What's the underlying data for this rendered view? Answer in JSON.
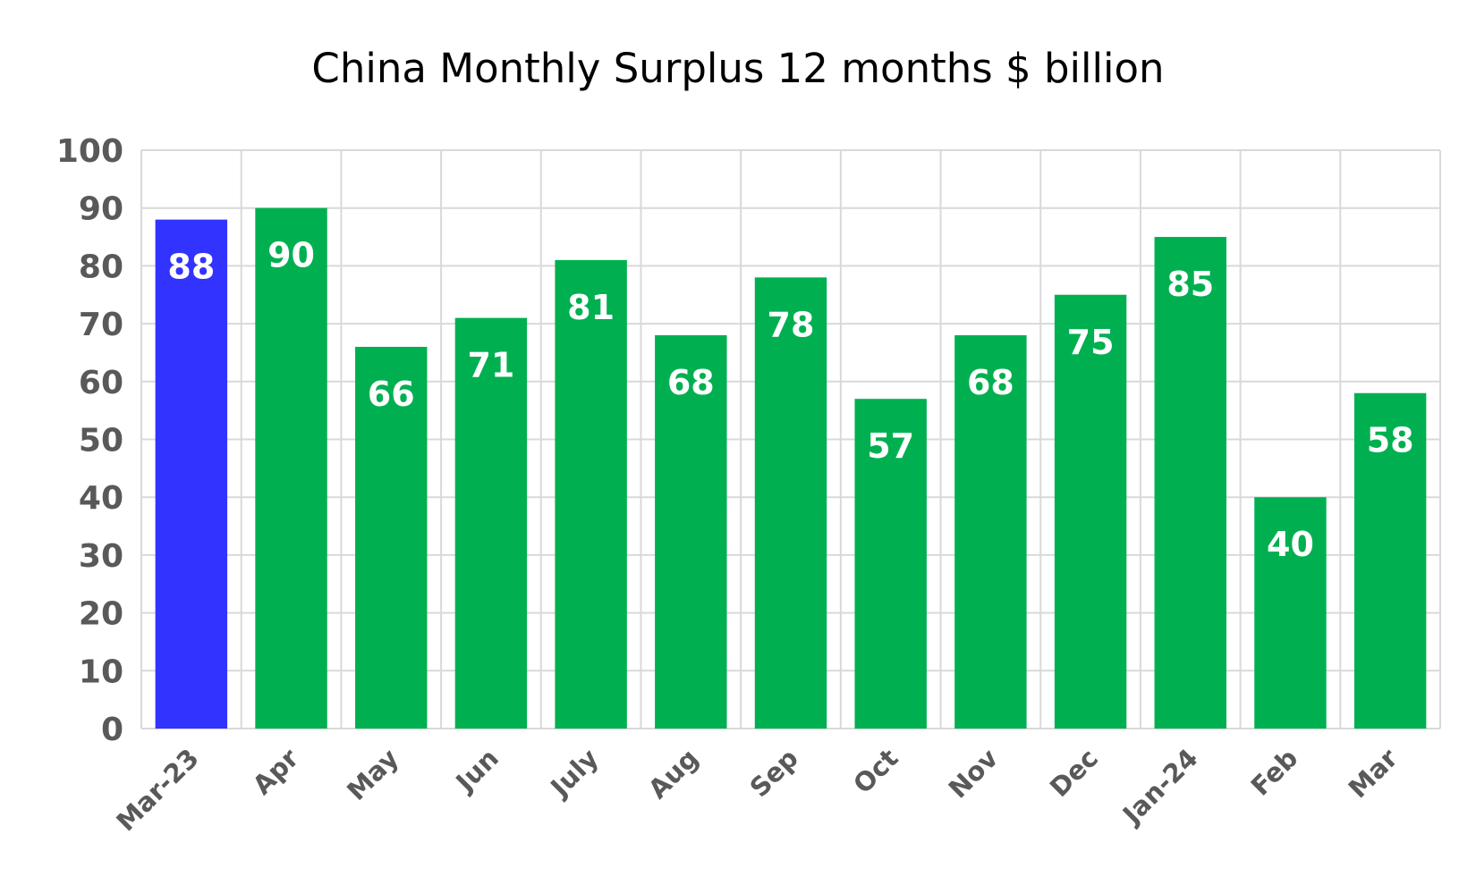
{
  "chart_data": {
    "type": "bar",
    "title": "China Monthly Surplus 12 months $ billion",
    "xlabel": "",
    "ylabel": "",
    "categories": [
      "Mar-23",
      "Apr",
      "May",
      "Jun",
      "July",
      "Aug",
      "Sep",
      "Oct",
      "Nov",
      "Dec",
      "Jan-24",
      "Feb",
      "Mar"
    ],
    "values": [
      88,
      90,
      66,
      71,
      81,
      68,
      78,
      57,
      68,
      75,
      85,
      40,
      58
    ],
    "data_labels": [
      "88",
      "90",
      "66",
      "71",
      "81",
      "68",
      "78",
      "57",
      "68",
      "75",
      "85",
      "40",
      "58"
    ],
    "ylim": [
      0,
      100
    ],
    "yticks": [
      "0",
      "10",
      "20",
      "30",
      "40",
      "50",
      "60",
      "70",
      "80",
      "90",
      "100"
    ],
    "grid": true,
    "legend": "none",
    "highlight_index": 0,
    "colors": {
      "bar": "#00b050",
      "highlight": "#3333ff",
      "grid": "#d9d9d9",
      "tick_text": "#595959",
      "data_label": "#ffffff",
      "title": "#000000"
    }
  }
}
